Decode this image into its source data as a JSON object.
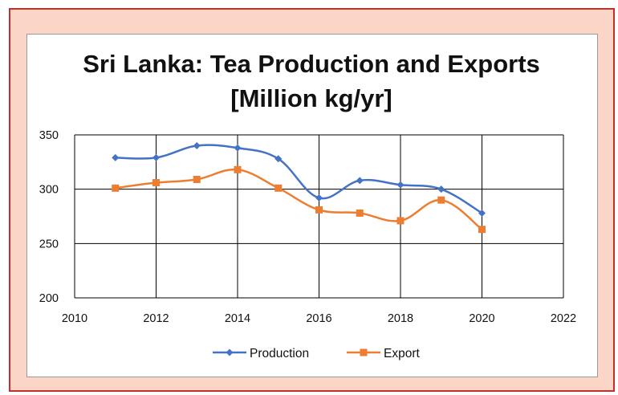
{
  "chart_data": {
    "type": "line",
    "title": "Sri Lanka: Tea Production and Exports",
    "subtitle": "[Million kg/yr]",
    "xlabel": "",
    "ylabel": "",
    "xlim": [
      2010,
      2022
    ],
    "ylim": [
      200,
      350
    ],
    "x_ticks": [
      "2010",
      "2012",
      "2014",
      "2016",
      "2018",
      "2020",
      "2022"
    ],
    "y_ticks": [
      "200",
      "250",
      "300",
      "350"
    ],
    "grid": true,
    "legend_position": "bottom",
    "x": [
      2011,
      2012,
      2013,
      2014,
      2015,
      2016,
      2017,
      2018,
      2019,
      2020
    ],
    "series": [
      {
        "name": "Production",
        "color": "#4472c4",
        "marker": "diamond",
        "values": [
          329,
          329,
          340,
          338,
          328,
          292,
          308,
          304,
          300,
          278
        ]
      },
      {
        "name": "Export",
        "color": "#ed7d31",
        "marker": "square",
        "values": [
          301,
          306,
          309,
          318,
          301,
          281,
          278,
          271,
          290,
          263
        ]
      }
    ]
  },
  "colors": {
    "frame_border": "#c0312b",
    "frame_fill": "#fbd5c6",
    "production": "#4472c4",
    "export": "#ed7d31"
  }
}
